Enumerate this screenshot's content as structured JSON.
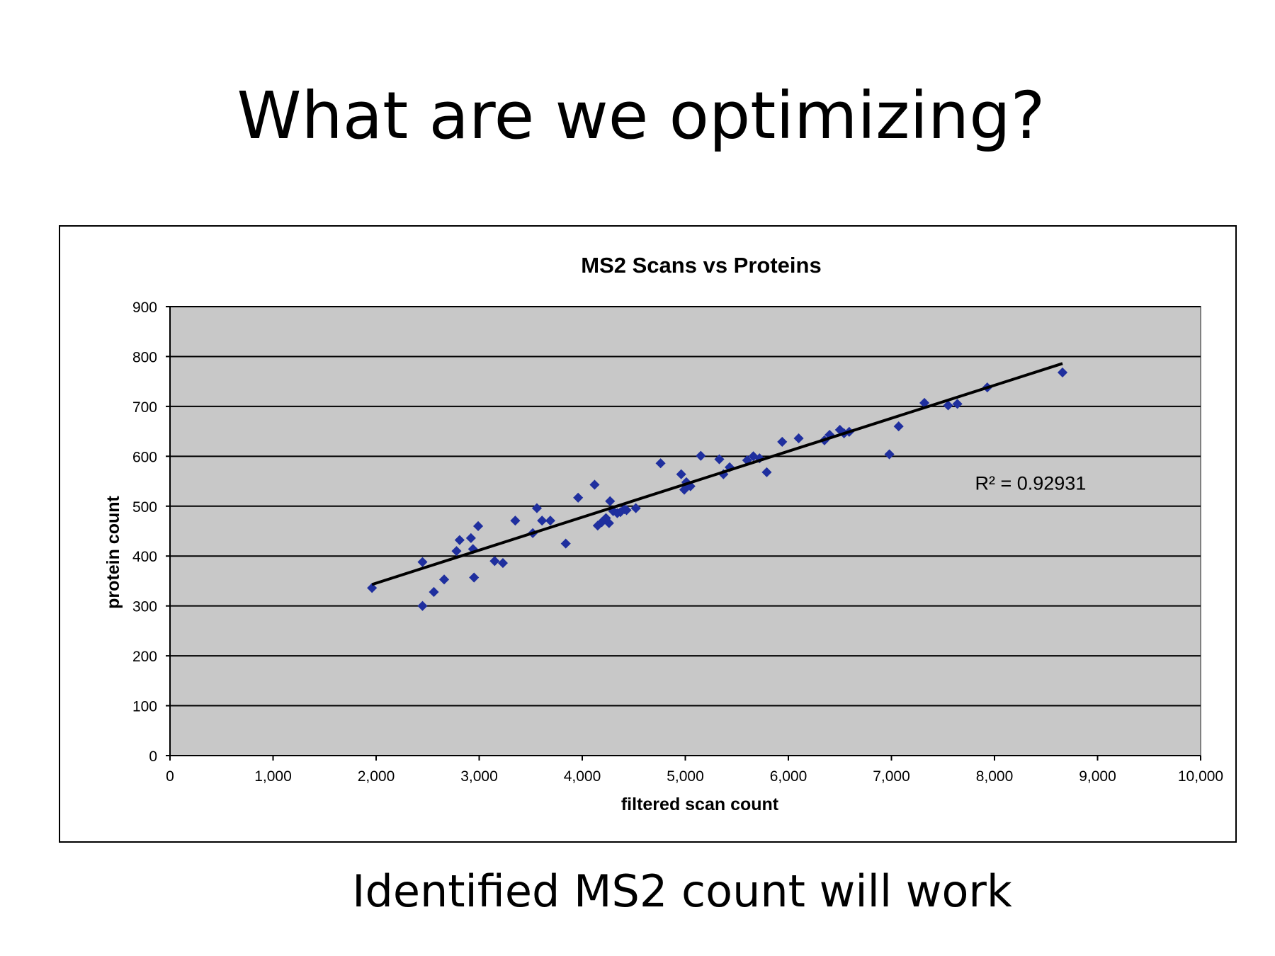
{
  "slide": {
    "title": "What are we optimizing?",
    "caption": "Identified MS2 count will work"
  },
  "colors": {
    "plot_background": "#c8c8c8",
    "marker": "#1f2f9e",
    "trendline": "#000000",
    "gridline": "#000000"
  },
  "chart_data": {
    "type": "scatter",
    "title": "MS2 Scans vs Proteins",
    "xlabel": "filtered scan count",
    "ylabel": "protein count",
    "xlim": [
      0,
      10000
    ],
    "ylim": [
      0,
      900
    ],
    "x_ticks": [
      0,
      1000,
      2000,
      3000,
      4000,
      5000,
      6000,
      7000,
      8000,
      9000,
      10000
    ],
    "x_tick_labels": [
      "0",
      "1,000",
      "2,000",
      "3,000",
      "4,000",
      "5,000",
      "6,000",
      "7,000",
      "8,000",
      "9,000",
      "10,000"
    ],
    "y_ticks": [
      0,
      100,
      200,
      300,
      400,
      500,
      600,
      700,
      800,
      900
    ],
    "y_tick_labels": [
      "0",
      "100",
      "200",
      "300",
      "400",
      "500",
      "600",
      "700",
      "800",
      "900"
    ],
    "grid": "horizontal",
    "marker": "diamond",
    "points": [
      [
        1960,
        336
      ],
      [
        2450,
        300
      ],
      [
        2450,
        388
      ],
      [
        2560,
        328
      ],
      [
        2660,
        353
      ],
      [
        2780,
        410
      ],
      [
        2810,
        432
      ],
      [
        2920,
        436
      ],
      [
        2940,
        414
      ],
      [
        2950,
        357
      ],
      [
        2990,
        460
      ],
      [
        3150,
        390
      ],
      [
        3230,
        386
      ],
      [
        3350,
        471
      ],
      [
        3520,
        446
      ],
      [
        3560,
        496
      ],
      [
        3610,
        471
      ],
      [
        3690,
        471
      ],
      [
        3840,
        425
      ],
      [
        3960,
        517
      ],
      [
        4120,
        543
      ],
      [
        4150,
        461
      ],
      [
        4190,
        468
      ],
      [
        4230,
        476
      ],
      [
        4260,
        466
      ],
      [
        4270,
        510
      ],
      [
        4300,
        490
      ],
      [
        4340,
        486
      ],
      [
        4370,
        488
      ],
      [
        4410,
        494
      ],
      [
        4430,
        492
      ],
      [
        4520,
        496
      ],
      [
        4760,
        586
      ],
      [
        4960,
        564
      ],
      [
        4990,
        533
      ],
      [
        5010,
        548
      ],
      [
        5050,
        540
      ],
      [
        5150,
        601
      ],
      [
        5330,
        594
      ],
      [
        5370,
        564
      ],
      [
        5430,
        578
      ],
      [
        5600,
        592
      ],
      [
        5660,
        600
      ],
      [
        5720,
        596
      ],
      [
        5790,
        568
      ],
      [
        5940,
        629
      ],
      [
        6100,
        636
      ],
      [
        6350,
        632
      ],
      [
        6400,
        643
      ],
      [
        6500,
        653
      ],
      [
        6540,
        646
      ],
      [
        6590,
        649
      ],
      [
        6980,
        604
      ],
      [
        7070,
        660
      ],
      [
        7320,
        707
      ],
      [
        7550,
        702
      ],
      [
        7640,
        705
      ],
      [
        7930,
        738
      ],
      [
        8660,
        768
      ]
    ],
    "trendline": {
      "type": "linear",
      "x_range": [
        1960,
        8660
      ],
      "y_range": [
        343,
        786
      ]
    },
    "annotation": "R² = 0.92931",
    "annotation_position": {
      "x": 8350,
      "y": 547
    }
  }
}
